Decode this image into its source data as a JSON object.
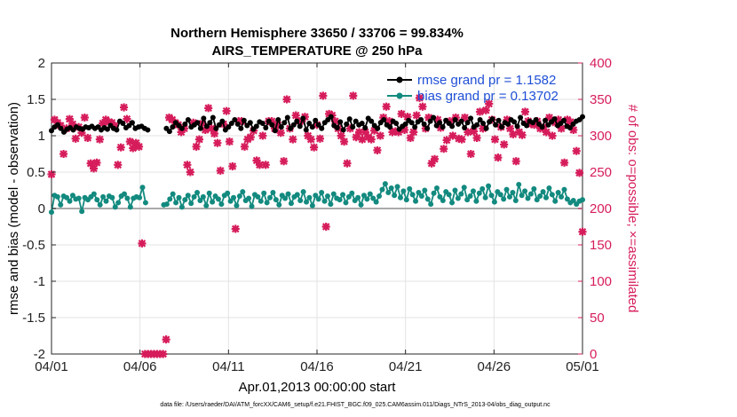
{
  "chart_data": {
    "type": "line",
    "title": "Northern Hemisphere 33650 / 33706 = 99.834%",
    "subtitle": "AIRS_TEMPERATURE @ 250 hPa",
    "xlabel": "Apr.01,2013 00:00:00 start",
    "ylabel": "rmse and bias (model - observation)",
    "ylabel_right": "# of obs: o=possible; ×=assimilated",
    "footnote": "data file: /Users/raeder/DAI/ATM_forcXX/CAM6_setup/f.e21.FHIST_BGC.f09_025.CAM6assim.011/Diags_NTrS_2013-04/obs_diag_output.nc",
    "xlim": [
      0,
      30
    ],
    "ylim": [
      -2,
      2
    ],
    "ylim_right": [
      0,
      400
    ],
    "grid": true,
    "legend_position": "top-right",
    "x_ticks": [
      0,
      5,
      10,
      15,
      20,
      25,
      30
    ],
    "x_tick_labels": [
      "04/01",
      "04/06",
      "04/11",
      "04/16",
      "04/21",
      "04/26",
      "05/01"
    ],
    "y_ticks": [
      -2,
      -1.5,
      -1,
      -0.5,
      0,
      0.5,
      1,
      1.5,
      2
    ],
    "y_tick_labels": [
      "-2",
      "-1.5",
      "-1",
      "-0.5",
      "0",
      "0.5",
      "1",
      "1.5",
      "2"
    ],
    "y_ticks_right": [
      0,
      50,
      100,
      150,
      200,
      250,
      300,
      350,
      400
    ],
    "y_tick_labels_right": [
      "0",
      "50",
      "100",
      "150",
      "200",
      "250",
      "300",
      "350",
      "400"
    ],
    "series": [
      {
        "name": "rmse grand pr = 1.1582",
        "color": "#000000",
        "values": [
          1.07,
          1.12,
          1.15,
          1.1,
          1.05,
          1.09,
          1.11,
          1.08,
          1.12,
          1.1,
          1.09,
          1.12,
          1.11,
          1.13,
          1.1,
          1.12,
          1.08,
          1.11,
          1.09,
          1.14,
          1.1,
          1.08,
          1.2,
          1.17,
          1.11,
          1.14,
          1.18,
          1.1,
          1.12,
          1.13,
          1.1,
          1.08,
          null,
          null,
          null,
          null,
          null,
          1.1,
          1.06,
          1.12,
          1.18,
          1.14,
          1.1,
          1.16,
          1.22,
          1.12,
          1.15,
          1.18,
          1.1,
          1.24,
          1.13,
          1.18,
          1.25,
          1.1,
          1.15,
          1.2,
          1.08,
          1.12,
          1.17,
          1.22,
          1.16,
          1.1,
          1.21,
          1.14,
          1.18,
          1.09,
          1.13,
          1.19,
          1.17,
          1.11,
          1.2,
          1.15,
          1.07,
          1.22,
          1.12,
          1.18,
          1.25,
          1.1,
          1.15,
          1.2,
          1.13,
          1.24,
          1.08,
          1.17,
          1.12,
          1.21,
          1.15,
          1.1,
          1.18,
          1.22,
          1.26,
          1.14,
          1.11,
          1.19,
          1.08,
          1.16,
          1.23,
          1.12,
          1.2,
          1.15,
          1.17,
          1.11,
          1.24,
          1.2,
          1.14,
          1.1,
          1.18,
          1.22,
          1.15,
          1.12,
          1.2,
          1.17,
          1.09,
          1.13,
          1.16,
          1.21,
          1.18,
          1.12,
          1.19,
          1.22,
          1.16,
          1.1,
          1.2,
          1.25,
          1.14,
          1.18,
          1.12,
          1.21,
          1.17,
          1.13,
          1.22,
          1.16,
          1.2,
          1.11,
          1.18,
          1.24,
          1.12,
          1.15,
          1.22,
          1.17,
          1.1,
          1.19,
          1.23,
          1.15,
          1.21,
          1.12,
          1.18,
          1.16,
          1.22,
          1.19,
          1.13,
          1.25,
          1.17,
          1.14,
          1.2,
          1.18,
          1.22,
          1.16,
          1.12,
          1.21,
          1.15,
          1.19,
          1.23,
          1.14,
          1.17,
          1.21,
          1.13,
          1.11,
          1.16,
          1.2,
          1.22,
          1.26
        ]
      },
      {
        "name": "bias grand pr = 0.13702",
        "color": "#138a7f",
        "values": [
          -0.05,
          0.18,
          0.16,
          0.05,
          0.17,
          0.15,
          0.1,
          0.18,
          0.13,
          0.14,
          -0.04,
          0.15,
          0.12,
          0.16,
          0.2,
          0.12,
          0.05,
          0.16,
          0.1,
          0.17,
          0.15,
          0.02,
          0.08,
          0.17,
          0.2,
          0.14,
          0.02,
          0.14,
          0.16,
          0.15,
          0.29,
          0.08,
          null,
          null,
          null,
          null,
          null,
          0.05,
          0.06,
          0.13,
          0.2,
          0.08,
          0.15,
          0.02,
          0.12,
          0.18,
          0.07,
          0.16,
          0.22,
          0.11,
          0.16,
          0.04,
          0.21,
          0.09,
          0.17,
          0.13,
          0.06,
          0.18,
          0.21,
          0.1,
          0.15,
          0.04,
          0.17,
          0.23,
          0.11,
          0.14,
          0.03,
          0.19,
          0.16,
          0.1,
          0.21,
          0.08,
          0.15,
          0.22,
          0.12,
          0.05,
          0.18,
          0.14,
          0.2,
          0.07,
          0.16,
          0.19,
          0.11,
          0.23,
          0.09,
          0.15,
          0.04,
          0.18,
          0.13,
          0.22,
          0.1,
          0.17,
          0.06,
          0.2,
          0.14,
          0.12,
          0.19,
          0.08,
          0.16,
          0.21,
          0.11,
          0.15,
          0.05,
          0.18,
          0.13,
          0.2,
          0.14,
          0.09,
          0.17,
          0.26,
          0.34,
          0.22,
          0.28,
          0.18,
          0.3,
          0.15,
          0.24,
          0.12,
          0.27,
          0.19,
          0.1,
          0.22,
          0.17,
          0.25,
          0.13,
          0.06,
          0.21,
          0.28,
          0.16,
          0.11,
          0.23,
          0.19,
          0.08,
          0.25,
          0.14,
          0.2,
          0.29,
          0.12,
          0.17,
          0.24,
          0.1,
          0.21,
          0.27,
          0.15,
          0.31,
          0.18,
          0.09,
          0.23,
          0.19,
          0.13,
          0.26,
          0.16,
          0.22,
          0.11,
          0.33,
          0.18,
          0.24,
          0.14,
          0.2,
          0.27,
          0.12,
          0.17,
          0.23,
          0.15,
          0.28,
          0.19,
          0.1,
          0.22,
          0.16,
          0.26,
          0.13,
          0.08,
          0.11,
          0.06,
          0.1,
          0.12
        ]
      }
    ],
    "obs_count": {
      "name": "# of obs assimilated",
      "color": "#d61c5a",
      "values": [
        247,
        322,
        318,
        314,
        275,
        310,
        323,
        316,
        296,
        312,
        304,
        325,
        297,
        262,
        255,
        263,
        295,
        317,
        322,
        319,
        318,
        314,
        260,
        284,
        339,
        323,
        292,
        283,
        290,
        285,
        152,
        0,
        0,
        0,
        0,
        0,
        0,
        0,
        20,
        325,
        322,
        318,
        315,
        305,
        310,
        260,
        250,
        318,
        285,
        295,
        317,
        308,
        338,
        310,
        303,
        290,
        252,
        316,
        334,
        292,
        258,
        172,
        320,
        320,
        285,
        295,
        298,
        307,
        266,
        260,
        300,
        260,
        320,
        320,
        310,
        315,
        304,
        265,
        350,
        310,
        295,
        328,
        320,
        320,
        326,
        300,
        295,
        284,
        315,
        296,
        355,
        175,
        330,
        328,
        320,
        310,
        300,
        292,
        262,
        310,
        355,
        298,
        305,
        295,
        305,
        298,
        295,
        307,
        280,
        300,
        325,
        340,
        320,
        305,
        306,
        305,
        330,
        308,
        326,
        297,
        305,
        328,
        352,
        340,
        310,
        325,
        262,
        268,
        322,
        311,
        282,
        294,
        320,
        300,
        325,
        296,
        295,
        325,
        305,
        275,
        306,
        297,
        333,
        310,
        335,
        344,
        322,
        295,
        270,
        312,
        288,
        322,
        310,
        302,
        265,
        305,
        301,
        333,
        320,
        316,
        315,
        320,
        310,
        312,
        305,
        325,
        300,
        318,
        322,
        310,
        263,
        322,
        319,
        308,
        279,
        249,
        168
      ]
    }
  }
}
